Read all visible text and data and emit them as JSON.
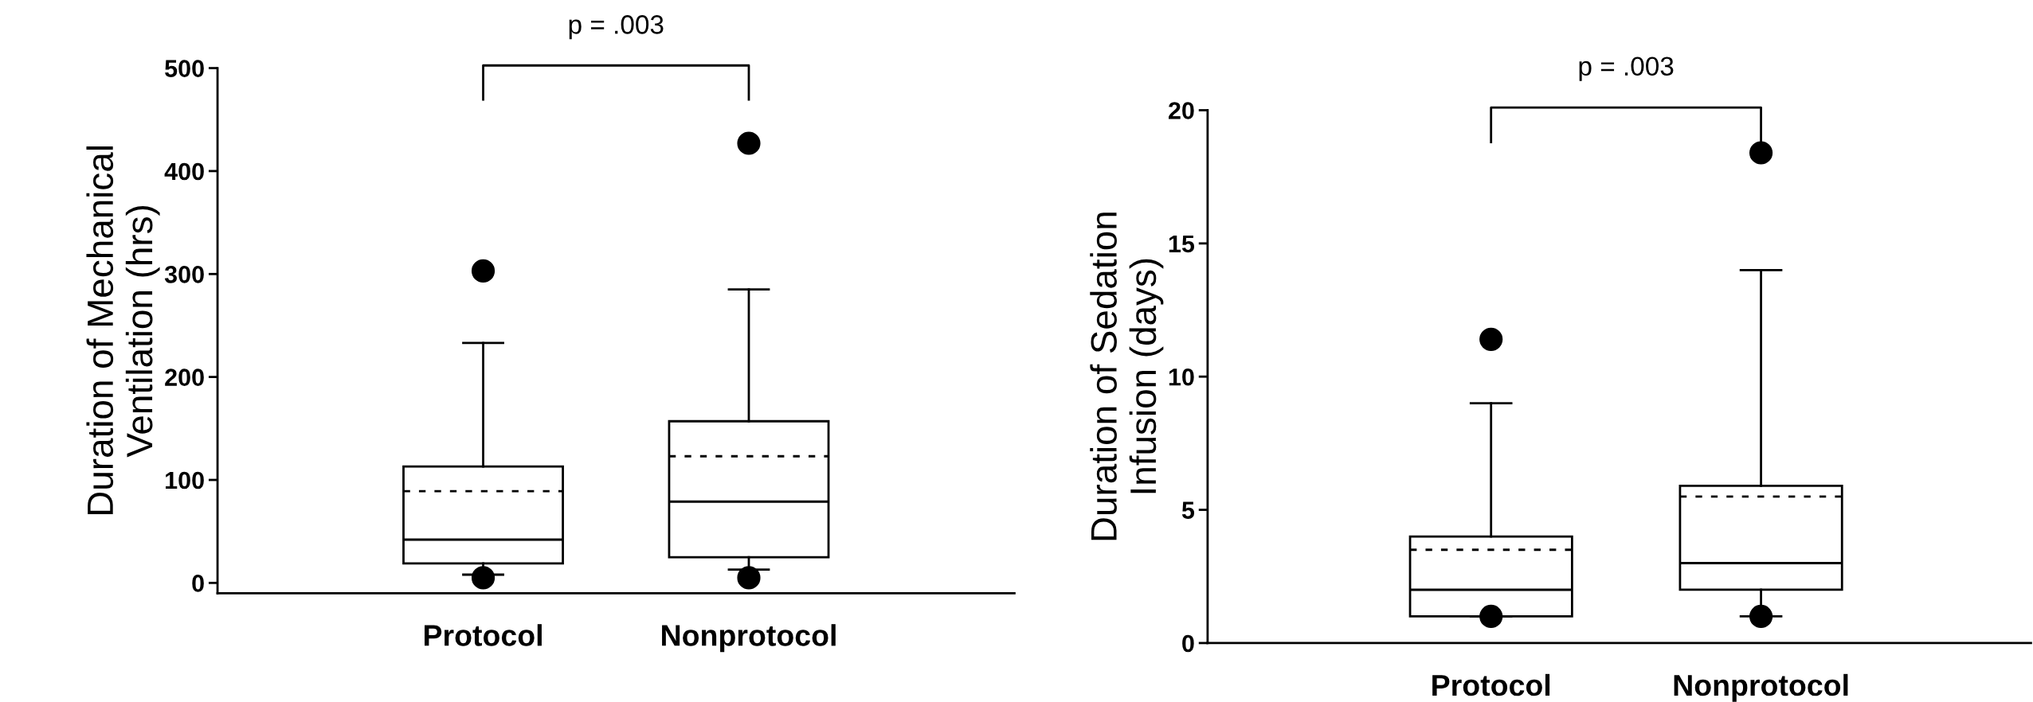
{
  "chart_data": [
    {
      "type": "box",
      "ylabel": "Duration of Mechanical\nVentilation (hrs)",
      "categories": [
        "Protocol",
        "Nonprotocol"
      ],
      "ylim": [
        -10,
        500
      ],
      "yticks": [
        0,
        100,
        200,
        300,
        400,
        500
      ],
      "annotations": [
        "p = .003"
      ],
      "grid": false,
      "boxes": [
        {
          "low": 8,
          "q1": 19,
          "median": 42,
          "q3": 113,
          "high": 233,
          "mean": 89,
          "outliers": [
            303,
            5
          ]
        },
        {
          "low": 13,
          "q1": 25,
          "median": 79,
          "q3": 157,
          "high": 285,
          "mean": 123,
          "outliers": [
            427,
            5
          ]
        }
      ]
    },
    {
      "type": "box",
      "ylabel": "Duration of Sedation\nInfusion (days)",
      "categories": [
        "Protocol",
        "Nonprotocol"
      ],
      "ylim": [
        0,
        20
      ],
      "yticks": [
        0,
        5,
        10,
        15,
        20
      ],
      "annotations": [
        "p = .003"
      ],
      "grid": false,
      "boxes": [
        {
          "low": 1,
          "q1": 1,
          "median": 2,
          "q3": 4,
          "high": 9,
          "mean": 3.5,
          "outliers": [
            11.4,
            1
          ]
        },
        {
          "low": 1,
          "q1": 2,
          "median": 3,
          "q3": 5.9,
          "high": 14,
          "mean": 5.5,
          "outliers": [
            18.4,
            1
          ]
        }
      ]
    }
  ]
}
